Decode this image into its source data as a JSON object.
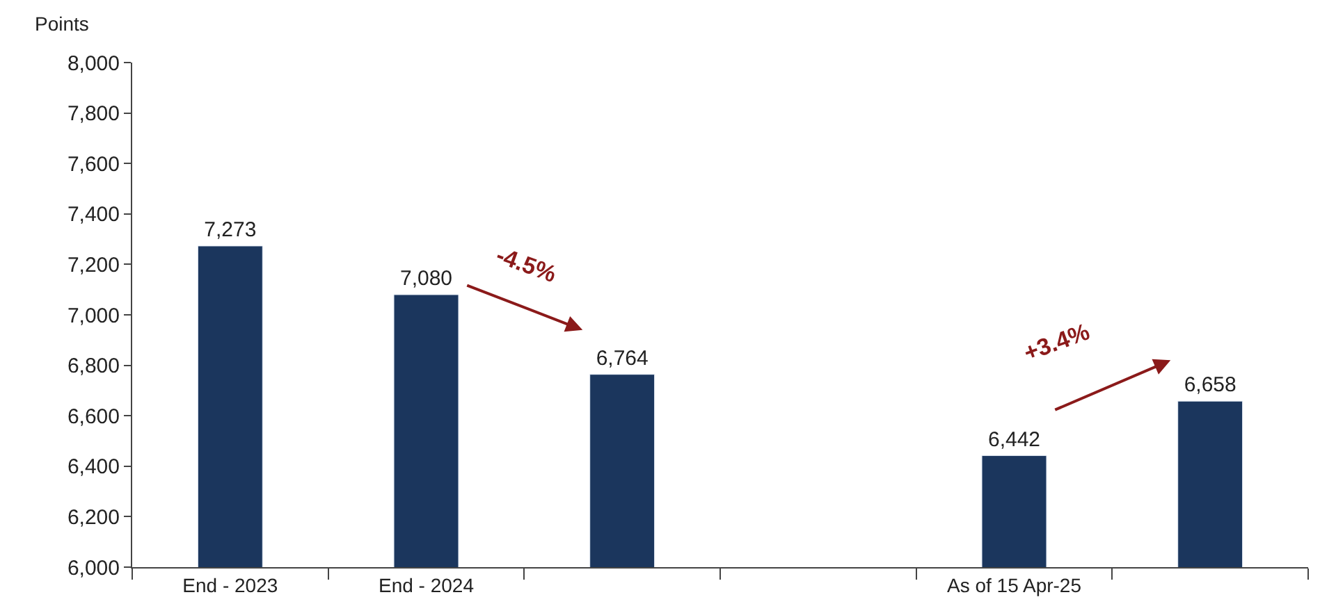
{
  "chart_data": {
    "type": "bar",
    "ylabel": "Points",
    "categories": [
      "End - 2023",
      "End - 2024",
      null,
      null,
      "As of 15 Apr-25",
      null
    ],
    "values": [
      7273,
      7080,
      6764,
      null,
      6442,
      6658
    ],
    "color": "#1b365d",
    "ylim": [
      6000,
      8000
    ],
    "yticks": [
      {
        "value": 6000,
        "label": "6,000"
      },
      {
        "value": 6200,
        "label": "6,200"
      },
      {
        "value": 6400,
        "label": "6,400"
      },
      {
        "value": 6600,
        "label": "6,600"
      },
      {
        "value": 6800,
        "label": "6,800"
      },
      {
        "value": 7000,
        "label": "7,000"
      },
      {
        "value": 7200,
        "label": "7,200"
      },
      {
        "value": 7400,
        "label": "7,400"
      },
      {
        "value": 7600,
        "label": "7,600"
      },
      {
        "value": 7800,
        "label": "7,800"
      },
      {
        "value": 8000,
        "label": "8,000"
      }
    ],
    "value_labels": [
      "7,273",
      "7,080",
      "6,764",
      null,
      "6,442",
      "6,658"
    ],
    "annotations": [
      "-4.5%",
      "+3.4%"
    ]
  }
}
